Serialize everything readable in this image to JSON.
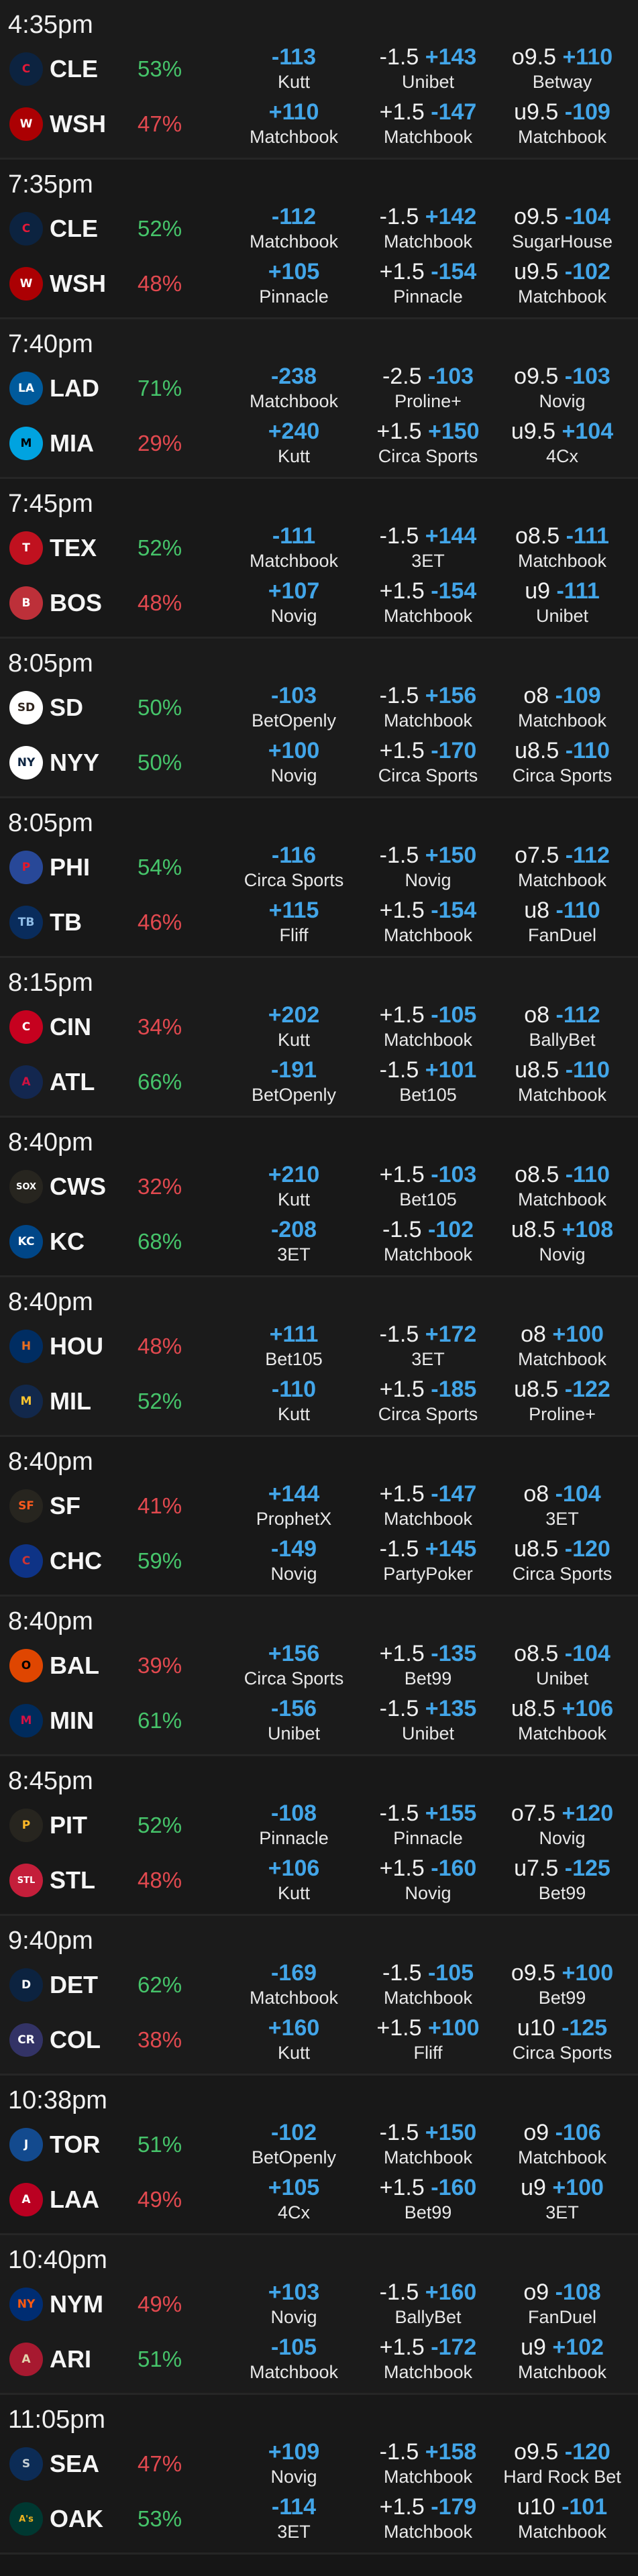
{
  "colors": {
    "background": "#161616",
    "odds": "#42a5e8",
    "win_pct": "#46c46a",
    "lose_pct": "#e2494f"
  },
  "games": [
    {
      "time": "4:35pm",
      "teams": [
        {
          "abbr": "CLE",
          "pct": "53%",
          "result": "win",
          "logo": {
            "icon": "guardians-c-logo",
            "glyph": "C",
            "bg": "#0c2340",
            "fg": "#e31937"
          },
          "ml": {
            "odds": "-113",
            "book": "Kutt"
          },
          "spread": {
            "line": "-1.5",
            "odds": "+143",
            "book": "Unibet"
          },
          "total": {
            "line": "o9.5",
            "odds": "+110",
            "book": "Betway"
          }
        },
        {
          "abbr": "WSH",
          "pct": "47%",
          "result": "lose",
          "logo": {
            "icon": "nationals-w-logo",
            "glyph": "W",
            "bg": "#ab0003",
            "fg": "#ffffff"
          },
          "ml": {
            "odds": "+110",
            "book": "Matchbook"
          },
          "spread": {
            "line": "+1.5",
            "odds": "-147",
            "book": "Matchbook"
          },
          "total": {
            "line": "u9.5",
            "odds": "-109",
            "book": "Matchbook"
          }
        }
      ]
    },
    {
      "time": "7:35pm",
      "teams": [
        {
          "abbr": "CLE",
          "pct": "52%",
          "result": "win",
          "logo": {
            "icon": "guardians-c-logo",
            "glyph": "C",
            "bg": "#0c2340",
            "fg": "#e31937"
          },
          "ml": {
            "odds": "-112",
            "book": "Matchbook"
          },
          "spread": {
            "line": "-1.5",
            "odds": "+142",
            "book": "Matchbook"
          },
          "total": {
            "line": "o9.5",
            "odds": "-104",
            "book": "SugarHouse"
          }
        },
        {
          "abbr": "WSH",
          "pct": "48%",
          "result": "lose",
          "logo": {
            "icon": "nationals-w-logo",
            "glyph": "W",
            "bg": "#ab0003",
            "fg": "#ffffff"
          },
          "ml": {
            "odds": "+105",
            "book": "Pinnacle"
          },
          "spread": {
            "line": "+1.5",
            "odds": "-154",
            "book": "Pinnacle"
          },
          "total": {
            "line": "u9.5",
            "odds": "-102",
            "book": "Matchbook"
          }
        }
      ]
    },
    {
      "time": "7:40pm",
      "teams": [
        {
          "abbr": "LAD",
          "pct": "71%",
          "result": "win",
          "logo": {
            "icon": "dodgers-la-logo",
            "glyph": "LA",
            "bg": "#005a9c",
            "fg": "#ffffff"
          },
          "ml": {
            "odds": "-238",
            "book": "Matchbook"
          },
          "spread": {
            "line": "-2.5",
            "odds": "-103",
            "book": "Proline+"
          },
          "total": {
            "line": "o9.5",
            "odds": "-103",
            "book": "Novig"
          }
        },
        {
          "abbr": "MIA",
          "pct": "29%",
          "result": "lose",
          "logo": {
            "icon": "marlins-logo",
            "glyph": "M",
            "bg": "#00a3e0",
            "fg": "#000000"
          },
          "ml": {
            "odds": "+240",
            "book": "Kutt"
          },
          "spread": {
            "line": "+1.5",
            "odds": "+150",
            "book": "Circa Sports"
          },
          "total": {
            "line": "u9.5",
            "odds": "+104",
            "book": "4Cx"
          }
        }
      ]
    },
    {
      "time": "7:45pm",
      "teams": [
        {
          "abbr": "TEX",
          "pct": "52%",
          "result": "win",
          "logo": {
            "icon": "rangers-t-logo",
            "glyph": "T",
            "bg": "#c0111f",
            "fg": "#ffffff"
          },
          "ml": {
            "odds": "-111",
            "book": "Matchbook"
          },
          "spread": {
            "line": "-1.5",
            "odds": "+144",
            "book": "3ET"
          },
          "total": {
            "line": "o8.5",
            "odds": "-111",
            "book": "Matchbook"
          }
        },
        {
          "abbr": "BOS",
          "pct": "48%",
          "result": "lose",
          "logo": {
            "icon": "red-sox-logo",
            "glyph": "B",
            "bg": "#bd3039",
            "fg": "#ffffff"
          },
          "ml": {
            "odds": "+107",
            "book": "Novig"
          },
          "spread": {
            "line": "+1.5",
            "odds": "-154",
            "book": "Matchbook"
          },
          "total": {
            "line": "u9",
            "odds": "-111",
            "book": "Unibet"
          }
        }
      ]
    },
    {
      "time": "8:05pm",
      "teams": [
        {
          "abbr": "SD",
          "pct": "50%",
          "result": "win",
          "logo": {
            "icon": "padres-sd-logo",
            "glyph": "SD",
            "bg": "#ffffff",
            "fg": "#2f241d"
          },
          "ml": {
            "odds": "-103",
            "book": "BetOpenly"
          },
          "spread": {
            "line": "-1.5",
            "odds": "+156",
            "book": "Matchbook"
          },
          "total": {
            "line": "o8",
            "odds": "-109",
            "book": "Matchbook"
          }
        },
        {
          "abbr": "NYY",
          "pct": "50%",
          "result": "win",
          "logo": {
            "icon": "yankees-logo",
            "glyph": "NY",
            "bg": "#ffffff",
            "fg": "#0c2340"
          },
          "ml": {
            "odds": "+100",
            "book": "Novig"
          },
          "spread": {
            "line": "+1.5",
            "odds": "-170",
            "book": "Circa Sports"
          },
          "total": {
            "line": "u8.5",
            "odds": "-110",
            "book": "Circa Sports"
          }
        }
      ]
    },
    {
      "time": "8:05pm",
      "teams": [
        {
          "abbr": "PHI",
          "pct": "54%",
          "result": "win",
          "logo": {
            "icon": "phillies-logo",
            "glyph": "P",
            "bg": "#284898",
            "fg": "#e81828"
          },
          "ml": {
            "odds": "-116",
            "book": "Circa Sports"
          },
          "spread": {
            "line": "-1.5",
            "odds": "+150",
            "book": "Novig"
          },
          "total": {
            "line": "o7.5",
            "odds": "-112",
            "book": "Matchbook"
          }
        },
        {
          "abbr": "TB",
          "pct": "46%",
          "result": "lose",
          "logo": {
            "icon": "rays-logo",
            "glyph": "TB",
            "bg": "#092c5c",
            "fg": "#8fbce6"
          },
          "ml": {
            "odds": "+115",
            "book": "Fliff"
          },
          "spread": {
            "line": "+1.5",
            "odds": "-154",
            "book": "Matchbook"
          },
          "total": {
            "line": "u8",
            "odds": "-110",
            "book": "FanDuel"
          }
        }
      ]
    },
    {
      "time": "8:15pm",
      "teams": [
        {
          "abbr": "CIN",
          "pct": "34%",
          "result": "lose",
          "logo": {
            "icon": "reds-logo",
            "glyph": "C",
            "bg": "#c6011f",
            "fg": "#ffffff"
          },
          "ml": {
            "odds": "+202",
            "book": "Kutt"
          },
          "spread": {
            "line": "+1.5",
            "odds": "-105",
            "book": "Matchbook"
          },
          "total": {
            "line": "o8",
            "odds": "-112",
            "book": "BallyBet"
          }
        },
        {
          "abbr": "ATL",
          "pct": "66%",
          "result": "win",
          "logo": {
            "icon": "braves-a-logo",
            "glyph": "A",
            "bg": "#13274f",
            "fg": "#ce1141"
          },
          "ml": {
            "odds": "-191",
            "book": "BetOpenly"
          },
          "spread": {
            "line": "-1.5",
            "odds": "+101",
            "book": "Bet105"
          },
          "total": {
            "line": "u8.5",
            "odds": "-110",
            "book": "Matchbook"
          }
        }
      ]
    },
    {
      "time": "8:40pm",
      "teams": [
        {
          "abbr": "CWS",
          "pct": "32%",
          "result": "lose",
          "logo": {
            "icon": "white-sox-logo",
            "glyph": "SOX",
            "bg": "#27251f",
            "fg": "#ffffff"
          },
          "ml": {
            "odds": "+210",
            "book": "Kutt"
          },
          "spread": {
            "line": "+1.5",
            "odds": "-103",
            "book": "Bet105"
          },
          "total": {
            "line": "o8.5",
            "odds": "-110",
            "book": "Matchbook"
          }
        },
        {
          "abbr": "KC",
          "pct": "68%",
          "result": "win",
          "logo": {
            "icon": "royals-kc-logo",
            "glyph": "KC",
            "bg": "#004687",
            "fg": "#ffffff"
          },
          "ml": {
            "odds": "-208",
            "book": "3ET"
          },
          "spread": {
            "line": "-1.5",
            "odds": "-102",
            "book": "Matchbook"
          },
          "total": {
            "line": "u8.5",
            "odds": "+108",
            "book": "Novig"
          }
        }
      ]
    },
    {
      "time": "8:40pm",
      "teams": [
        {
          "abbr": "HOU",
          "pct": "48%",
          "result": "lose",
          "logo": {
            "icon": "astros-logo",
            "glyph": "H",
            "bg": "#002d62",
            "fg": "#eb6e1f"
          },
          "ml": {
            "odds": "+111",
            "book": "Bet105"
          },
          "spread": {
            "line": "-1.5",
            "odds": "+172",
            "book": "3ET"
          },
          "total": {
            "line": "o8",
            "odds": "+100",
            "book": "Matchbook"
          }
        },
        {
          "abbr": "MIL",
          "pct": "52%",
          "result": "win",
          "logo": {
            "icon": "brewers-logo",
            "glyph": "M",
            "bg": "#12284b",
            "fg": "#ffc52f"
          },
          "ml": {
            "odds": "-110",
            "book": "Kutt"
          },
          "spread": {
            "line": "+1.5",
            "odds": "-185",
            "book": "Circa Sports"
          },
          "total": {
            "line": "u8.5",
            "odds": "-122",
            "book": "Proline+"
          }
        }
      ]
    },
    {
      "time": "8:40pm",
      "teams": [
        {
          "abbr": "SF",
          "pct": "41%",
          "result": "lose",
          "logo": {
            "icon": "giants-sf-logo",
            "glyph": "SF",
            "bg": "#27251f",
            "fg": "#fd5a1e"
          },
          "ml": {
            "odds": "+144",
            "book": "ProphetX"
          },
          "spread": {
            "line": "+1.5",
            "odds": "-147",
            "book": "Matchbook"
          },
          "total": {
            "line": "o8",
            "odds": "-104",
            "book": "3ET"
          }
        },
        {
          "abbr": "CHC",
          "pct": "59%",
          "result": "win",
          "logo": {
            "icon": "cubs-logo",
            "glyph": "C",
            "bg": "#0e3386",
            "fg": "#cc3433"
          },
          "ml": {
            "odds": "-149",
            "book": "Novig"
          },
          "spread": {
            "line": "-1.5",
            "odds": "+145",
            "book": "PartyPoker"
          },
          "total": {
            "line": "u8.5",
            "odds": "-120",
            "book": "Circa Sports"
          }
        }
      ]
    },
    {
      "time": "8:40pm",
      "teams": [
        {
          "abbr": "BAL",
          "pct": "39%",
          "result": "lose",
          "logo": {
            "icon": "orioles-logo",
            "glyph": "O",
            "bg": "#df4601",
            "fg": "#000000"
          },
          "ml": {
            "odds": "+156",
            "book": "Circa Sports"
          },
          "spread": {
            "line": "+1.5",
            "odds": "-135",
            "book": "Bet99"
          },
          "total": {
            "line": "o8.5",
            "odds": "-104",
            "book": "Unibet"
          }
        },
        {
          "abbr": "MIN",
          "pct": "61%",
          "result": "win",
          "logo": {
            "icon": "twins-logo",
            "glyph": "M",
            "bg": "#002b5c",
            "fg": "#d31145"
          },
          "ml": {
            "odds": "-156",
            "book": "Unibet"
          },
          "spread": {
            "line": "-1.5",
            "odds": "+135",
            "book": "Unibet"
          },
          "total": {
            "line": "u8.5",
            "odds": "+106",
            "book": "Matchbook"
          }
        }
      ]
    },
    {
      "time": "8:45pm",
      "teams": [
        {
          "abbr": "PIT",
          "pct": "52%",
          "result": "win",
          "logo": {
            "icon": "pirates-p-logo",
            "glyph": "P",
            "bg": "#27251f",
            "fg": "#fdb827"
          },
          "ml": {
            "odds": "-108",
            "book": "Pinnacle"
          },
          "spread": {
            "line": "-1.5",
            "odds": "+155",
            "book": "Pinnacle"
          },
          "total": {
            "line": "o7.5",
            "odds": "+120",
            "book": "Novig"
          }
        },
        {
          "abbr": "STL",
          "pct": "48%",
          "result": "lose",
          "logo": {
            "icon": "cardinals-logo",
            "glyph": "STL",
            "bg": "#c41e3a",
            "fg": "#ffffff"
          },
          "ml": {
            "odds": "+106",
            "book": "Kutt"
          },
          "spread": {
            "line": "+1.5",
            "odds": "-160",
            "book": "Novig"
          },
          "total": {
            "line": "u7.5",
            "odds": "-125",
            "book": "Bet99"
          }
        }
      ]
    },
    {
      "time": "9:40pm",
      "teams": [
        {
          "abbr": "DET",
          "pct": "62%",
          "result": "win",
          "logo": {
            "icon": "tigers-d-logo",
            "glyph": "D",
            "bg": "#0c2340",
            "fg": "#ffffff"
          },
          "ml": {
            "odds": "-169",
            "book": "Matchbook"
          },
          "spread": {
            "line": "-1.5",
            "odds": "-105",
            "book": "Matchbook"
          },
          "total": {
            "line": "o9.5",
            "odds": "+100",
            "book": "Bet99"
          }
        },
        {
          "abbr": "COL",
          "pct": "38%",
          "result": "lose",
          "logo": {
            "icon": "rockies-cr-logo",
            "glyph": "CR",
            "bg": "#333366",
            "fg": "#ffffff"
          },
          "ml": {
            "odds": "+160",
            "book": "Kutt"
          },
          "spread": {
            "line": "+1.5",
            "odds": "+100",
            "book": "Fliff"
          },
          "total": {
            "line": "u10",
            "odds": "-125",
            "book": "Circa Sports"
          }
        }
      ]
    },
    {
      "time": "10:38pm",
      "teams": [
        {
          "abbr": "TOR",
          "pct": "51%",
          "result": "win",
          "logo": {
            "icon": "blue-jays-logo",
            "glyph": "J",
            "bg": "#134a8e",
            "fg": "#ffffff"
          },
          "ml": {
            "odds": "-102",
            "book": "BetOpenly"
          },
          "spread": {
            "line": "-1.5",
            "odds": "+150",
            "book": "Matchbook"
          },
          "total": {
            "line": "o9",
            "odds": "-106",
            "book": "Matchbook"
          }
        },
        {
          "abbr": "LAA",
          "pct": "49%",
          "result": "lose",
          "logo": {
            "icon": "angels-a-logo",
            "glyph": "A",
            "bg": "#ba0021",
            "fg": "#ffffff"
          },
          "ml": {
            "odds": "+105",
            "book": "4Cx"
          },
          "spread": {
            "line": "+1.5",
            "odds": "-160",
            "book": "Bet99"
          },
          "total": {
            "line": "u9",
            "odds": "+100",
            "book": "3ET"
          }
        }
      ]
    },
    {
      "time": "10:40pm",
      "teams": [
        {
          "abbr": "NYM",
          "pct": "49%",
          "result": "lose",
          "logo": {
            "icon": "mets-logo",
            "glyph": "NY",
            "bg": "#002d72",
            "fg": "#ff5910"
          },
          "ml": {
            "odds": "+103",
            "book": "Novig"
          },
          "spread": {
            "line": "-1.5",
            "odds": "+160",
            "book": "BallyBet"
          },
          "total": {
            "line": "o9",
            "odds": "-108",
            "book": "FanDuel"
          }
        },
        {
          "abbr": "ARI",
          "pct": "51%",
          "result": "win",
          "logo": {
            "icon": "diamondbacks-a-logo",
            "glyph": "A",
            "bg": "#a71930",
            "fg": "#e3d4ad"
          },
          "ml": {
            "odds": "-105",
            "book": "Matchbook"
          },
          "spread": {
            "line": "+1.5",
            "odds": "-172",
            "book": "Matchbook"
          },
          "total": {
            "line": "u9",
            "odds": "+102",
            "book": "Matchbook"
          }
        }
      ]
    },
    {
      "time": "11:05pm",
      "teams": [
        {
          "abbr": "SEA",
          "pct": "47%",
          "result": "lose",
          "logo": {
            "icon": "mariners-logo",
            "glyph": "S",
            "bg": "#0c2c56",
            "fg": "#c4ced4"
          },
          "ml": {
            "odds": "+109",
            "book": "Novig"
          },
          "spread": {
            "line": "-1.5",
            "odds": "+158",
            "book": "Matchbook"
          },
          "total": {
            "line": "o9.5",
            "odds": "-120",
            "book": "Hard Rock Bet"
          }
        },
        {
          "abbr": "OAK",
          "pct": "53%",
          "result": "win",
          "logo": {
            "icon": "athletics-logo",
            "glyph": "A's",
            "bg": "#003831",
            "fg": "#efb21e"
          },
          "ml": {
            "odds": "-114",
            "book": "3ET"
          },
          "spread": {
            "line": "+1.5",
            "odds": "-179",
            "book": "Matchbook"
          },
          "total": {
            "line": "u10",
            "odds": "-101",
            "book": "Matchbook"
          }
        }
      ]
    }
  ]
}
